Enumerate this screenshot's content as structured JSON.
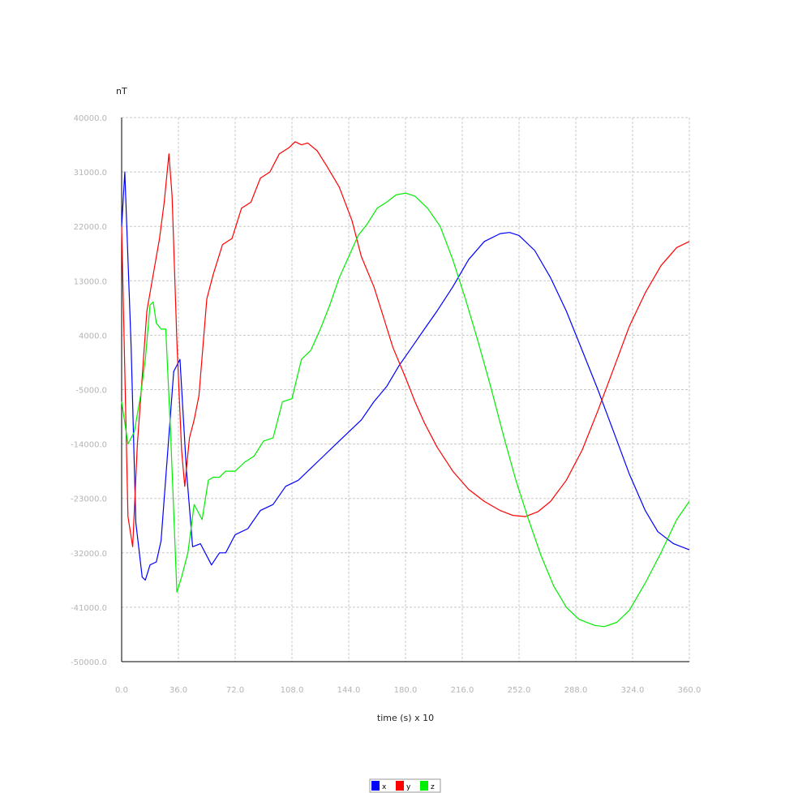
{
  "chart_data": {
    "type": "line",
    "title": "",
    "xlabel": "time (s) x 10",
    "ylabel": "nT",
    "xlim": [
      0,
      360
    ],
    "ylim": [
      -50000,
      40000
    ],
    "grid": true,
    "legend_position": "bottom-center",
    "x_ticks": [
      "0.0",
      "36.0",
      "72.0",
      "108.0",
      "144.0",
      "180.0",
      "216.0",
      "252.0",
      "288.0",
      "324.0",
      "360.0"
    ],
    "y_ticks": [
      "40000.0",
      "31000.0",
      "22000.0",
      "13000.0",
      "4000.0",
      "-5000.0",
      "-14000.0",
      "-23000.0",
      "-32000.0",
      "-41000.0",
      "-50000.0"
    ],
    "series": [
      {
        "name": "x",
        "color": "#0000ff",
        "points": [
          [
            0,
            22000
          ],
          [
            2,
            31000
          ],
          [
            6,
            2000
          ],
          [
            9,
            -27000
          ],
          [
            13,
            -36000
          ],
          [
            15,
            -36500
          ],
          [
            18,
            -34000
          ],
          [
            22,
            -33500
          ],
          [
            25,
            -30000
          ],
          [
            29,
            -16000
          ],
          [
            33,
            -2000
          ],
          [
            37,
            0
          ],
          [
            41,
            -18000
          ],
          [
            45,
            -31000
          ],
          [
            50,
            -30500
          ],
          [
            57,
            -34000
          ],
          [
            62,
            -32000
          ],
          [
            66,
            -32000
          ],
          [
            72,
            -29000
          ],
          [
            80,
            -28000
          ],
          [
            88,
            -25000
          ],
          [
            96,
            -24000
          ],
          [
            104,
            -21000
          ],
          [
            112,
            -20000
          ],
          [
            120,
            -18000
          ],
          [
            128,
            -16000
          ],
          [
            136,
            -14000
          ],
          [
            144,
            -12000
          ],
          [
            152,
            -10000
          ],
          [
            160,
            -7000
          ],
          [
            168,
            -4500
          ],
          [
            176,
            -1000
          ],
          [
            184,
            2000
          ],
          [
            192,
            5000
          ],
          [
            200,
            8000
          ],
          [
            210,
            12000
          ],
          [
            220,
            16500
          ],
          [
            230,
            19500
          ],
          [
            240,
            20800
          ],
          [
            246,
            21000
          ],
          [
            252,
            20500
          ],
          [
            262,
            18000
          ],
          [
            272,
            13500
          ],
          [
            282,
            8000
          ],
          [
            292,
            1500
          ],
          [
            302,
            -5000
          ],
          [
            312,
            -12000
          ],
          [
            322,
            -19000
          ],
          [
            332,
            -25000
          ],
          [
            340,
            -28500
          ],
          [
            350,
            -30500
          ],
          [
            360,
            -31500
          ]
        ]
      },
      {
        "name": "y",
        "color": "#ff0000",
        "points": [
          [
            0,
            22000
          ],
          [
            4,
            -26000
          ],
          [
            7,
            -31000
          ],
          [
            10,
            -14000
          ],
          [
            13,
            -3000
          ],
          [
            16,
            8000
          ],
          [
            20,
            14000
          ],
          [
            24,
            20000
          ],
          [
            27,
            26000
          ],
          [
            30,
            34000
          ],
          [
            32,
            27000
          ],
          [
            35,
            3000
          ],
          [
            38,
            -15000
          ],
          [
            40,
            -21000
          ],
          [
            43,
            -13000
          ],
          [
            46,
            -10000
          ],
          [
            49,
            -6000
          ],
          [
            54,
            10000
          ],
          [
            58,
            14000
          ],
          [
            64,
            19000
          ],
          [
            70,
            20000
          ],
          [
            76,
            25000
          ],
          [
            82,
            26000
          ],
          [
            88,
            30000
          ],
          [
            94,
            31000
          ],
          [
            100,
            34000
          ],
          [
            106,
            35000
          ],
          [
            110,
            36000
          ],
          [
            114,
            35500
          ],
          [
            118,
            35800
          ],
          [
            124,
            34500
          ],
          [
            130,
            32000
          ],
          [
            138,
            28500
          ],
          [
            146,
            23000
          ],
          [
            152,
            17000
          ],
          [
            160,
            12000
          ],
          [
            166,
            7000
          ],
          [
            172,
            2000
          ],
          [
            180,
            -3000
          ],
          [
            186,
            -7000
          ],
          [
            192,
            -10500
          ],
          [
            200,
            -14500
          ],
          [
            210,
            -18500
          ],
          [
            220,
            -21500
          ],
          [
            230,
            -23500
          ],
          [
            240,
            -25000
          ],
          [
            248,
            -25800
          ],
          [
            256,
            -26000
          ],
          [
            264,
            -25200
          ],
          [
            272,
            -23500
          ],
          [
            282,
            -20000
          ],
          [
            292,
            -15000
          ],
          [
            302,
            -8500
          ],
          [
            312,
            -1500
          ],
          [
            322,
            5500
          ],
          [
            332,
            11000
          ],
          [
            342,
            15500
          ],
          [
            352,
            18500
          ],
          [
            360,
            19500
          ]
        ]
      },
      {
        "name": "z",
        "color": "#00ee00",
        "points": [
          [
            0,
            -7000
          ],
          [
            4,
            -14000
          ],
          [
            8,
            -12000
          ],
          [
            12,
            -6000
          ],
          [
            15,
            0
          ],
          [
            18,
            9000
          ],
          [
            20,
            9500
          ],
          [
            22,
            6000
          ],
          [
            25,
            5000
          ],
          [
            28,
            5000
          ],
          [
            31,
            -12000
          ],
          [
            35,
            -38500
          ],
          [
            38,
            -36000
          ],
          [
            42,
            -32000
          ],
          [
            46,
            -24000
          ],
          [
            51,
            -26500
          ],
          [
            55,
            -20000
          ],
          [
            58,
            -19500
          ],
          [
            62,
            -19500
          ],
          [
            66,
            -18500
          ],
          [
            72,
            -18500
          ],
          [
            78,
            -17000
          ],
          [
            84,
            -16000
          ],
          [
            90,
            -13500
          ],
          [
            96,
            -13000
          ],
          [
            102,
            -7000
          ],
          [
            108,
            -6500
          ],
          [
            114,
            0
          ],
          [
            120,
            1500
          ],
          [
            126,
            5000
          ],
          [
            132,
            9000
          ],
          [
            138,
            13500
          ],
          [
            144,
            17000
          ],
          [
            150,
            20500
          ],
          [
            156,
            22500
          ],
          [
            162,
            25000
          ],
          [
            168,
            26000
          ],
          [
            174,
            27200
          ],
          [
            180,
            27500
          ],
          [
            186,
            27000
          ],
          [
            194,
            25000
          ],
          [
            202,
            22000
          ],
          [
            210,
            16500
          ],
          [
            218,
            10000
          ],
          [
            226,
            3000
          ],
          [
            234,
            -4500
          ],
          [
            242,
            -12500
          ],
          [
            250,
            -20000
          ],
          [
            258,
            -26500
          ],
          [
            266,
            -32500
          ],
          [
            274,
            -37500
          ],
          [
            282,
            -41000
          ],
          [
            290,
            -43000
          ],
          [
            300,
            -44000
          ],
          [
            306,
            -44200
          ],
          [
            314,
            -43500
          ],
          [
            322,
            -41500
          ],
          [
            332,
            -37000
          ],
          [
            342,
            -32000
          ],
          [
            352,
            -26500
          ],
          [
            360,
            -23500
          ]
        ]
      }
    ]
  }
}
